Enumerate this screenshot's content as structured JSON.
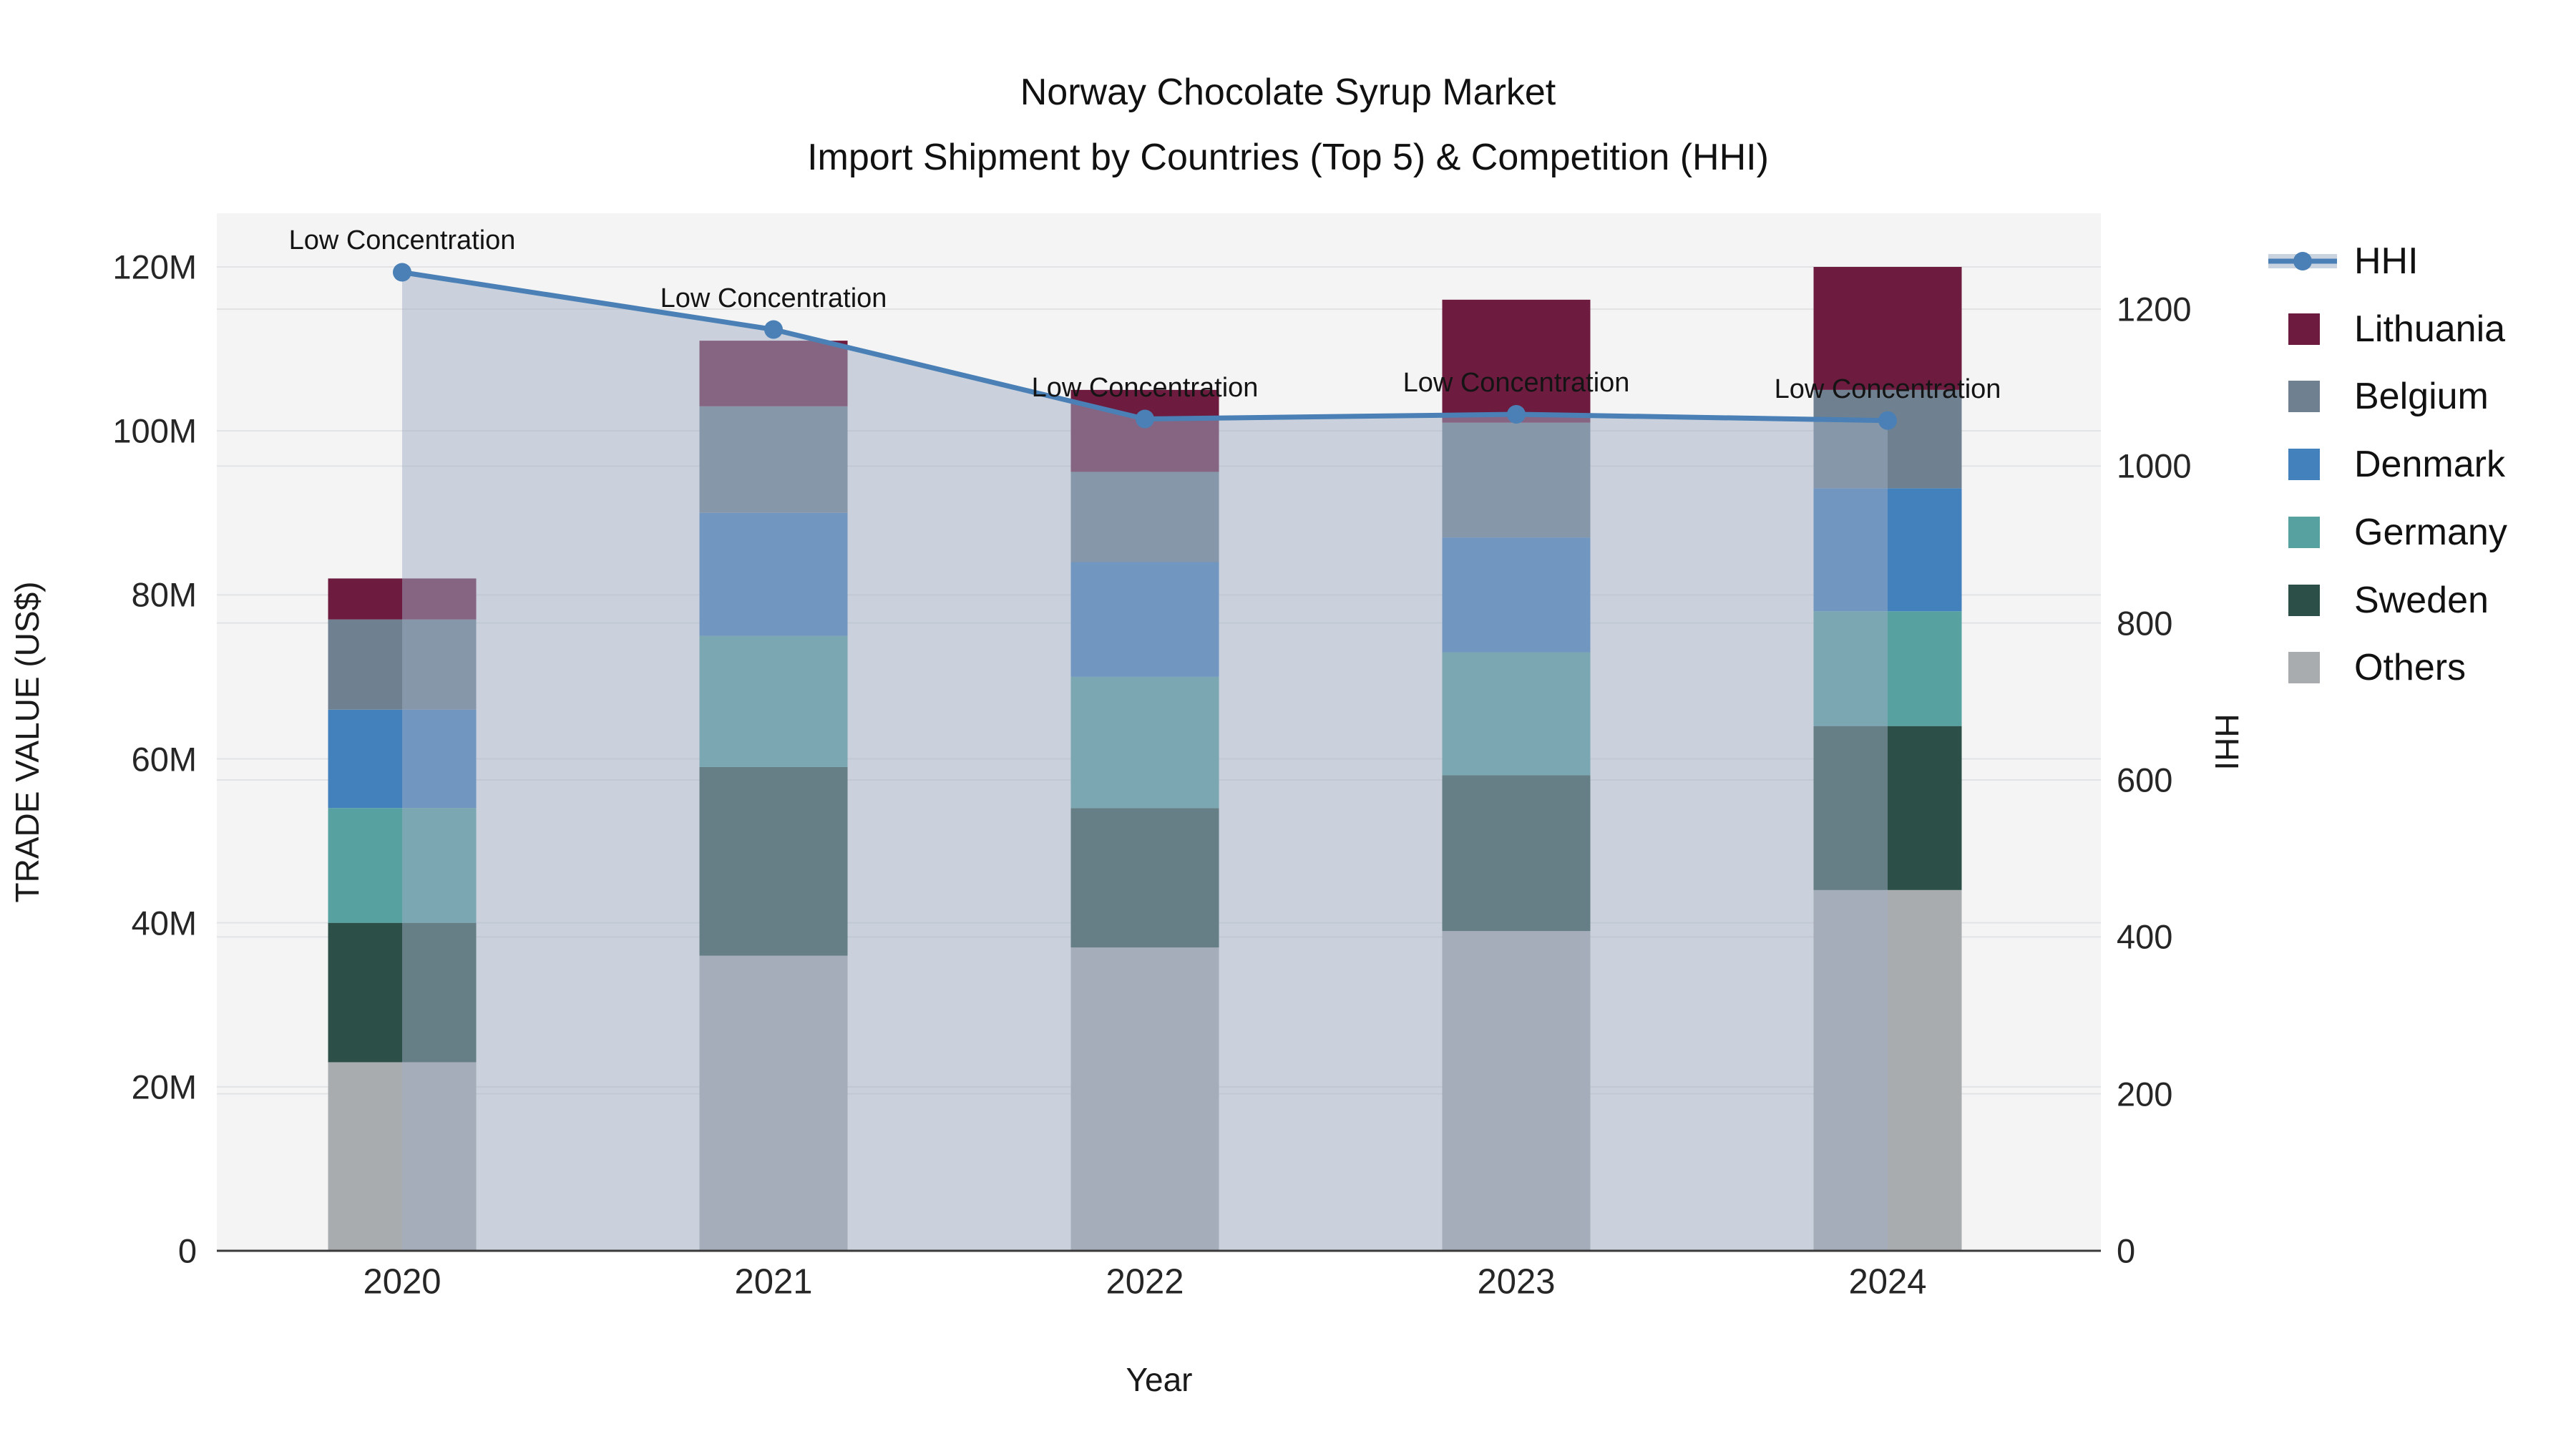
{
  "title": {
    "line1": "Norway Chocolate Syrup Market",
    "line2": "Import Shipment by Countries (Top 5) & Competition (HHI)"
  },
  "axes": {
    "x": {
      "label": "Year",
      "tick_labels": [
        "2020",
        "2021",
        "2022",
        "2023",
        "2024"
      ]
    },
    "y_left": {
      "label": "TRADE VALUE (US$)",
      "tick_labels": [
        "0",
        "20M",
        "40M",
        "60M",
        "80M",
        "100M",
        "120M"
      ],
      "tick_values": [
        0,
        20,
        40,
        60,
        80,
        100,
        120
      ]
    },
    "y_right": {
      "label": "HHI",
      "tick_labels": [
        "0",
        "200",
        "400",
        "600",
        "800",
        "1000",
        "1200"
      ],
      "tick_values": [
        0,
        200,
        400,
        600,
        800,
        1000,
        1200
      ]
    }
  },
  "legend": {
    "items": [
      {
        "label": "HHI",
        "type": "line",
        "color": "#4a80b5"
      },
      {
        "label": "Lithuania",
        "type": "swatch",
        "color": "#6d1c40"
      },
      {
        "label": "Belgium",
        "type": "swatch",
        "color": "#6f8191"
      },
      {
        "label": "Denmark",
        "type": "swatch",
        "color": "#4381bc"
      },
      {
        "label": "Germany",
        "type": "swatch",
        "color": "#57a1a1"
      },
      {
        "label": "Sweden",
        "type": "swatch",
        "color": "#2c5048"
      },
      {
        "label": "Others",
        "type": "swatch",
        "color": "#a9acae"
      }
    ]
  },
  "annotations": [
    "Low Concentration",
    "Low Concentration",
    "Low Concentration",
    "Low Concentration",
    "Low Concentration"
  ],
  "colors": {
    "hhi_line": "#4a80b5",
    "hhi_fill": "rgba(160,174,196,0.5)",
    "hhi_band": "#c9d2df",
    "plot_bg": "#f4f4f5",
    "gridline": "#e2e3e5",
    "axis_line": "#3a3a3a"
  },
  "chart_data": {
    "type": "bar-stacked+line",
    "title": "Norway Chocolate Syrup Market — Import Shipment by Countries (Top 5) & Competition (HHI)",
    "categories": [
      "2020",
      "2021",
      "2022",
      "2023",
      "2024"
    ],
    "stack_order_bottom_to_top": [
      "Others",
      "Sweden",
      "Germany",
      "Denmark",
      "Belgium",
      "Lithuania"
    ],
    "series": [
      {
        "name": "Others",
        "color": "#a9acae",
        "values": [
          23,
          36,
          37,
          39,
          44
        ]
      },
      {
        "name": "Sweden",
        "color": "#2c5048",
        "values": [
          17,
          23,
          17,
          19,
          20
        ]
      },
      {
        "name": "Germany",
        "color": "#57a1a1",
        "values": [
          14,
          16,
          16,
          15,
          14
        ]
      },
      {
        "name": "Denmark",
        "color": "#4381bc",
        "values": [
          12,
          15,
          14,
          14,
          15
        ]
      },
      {
        "name": "Belgium",
        "color": "#6f8191",
        "values": [
          11,
          13,
          11,
          14,
          12
        ]
      },
      {
        "name": "Lithuania",
        "color": "#6d1c40",
        "values": [
          5,
          8,
          10,
          15,
          15
        ]
      }
    ],
    "bar_totals_musd": [
      82,
      111,
      105,
      116,
      120
    ],
    "line_series": {
      "name": "HHI",
      "axis": "right",
      "color": "#4a80b5",
      "values": [
        1247,
        1174,
        1060,
        1066,
        1058
      ]
    },
    "xlabel": "Year",
    "ylabel": "TRADE VALUE (US$)",
    "y2label": "HHI",
    "ylim_musd": [
      0,
      126.6
    ],
    "y2lim": [
      0,
      1322
    ],
    "grid": true,
    "legend_position": "right"
  }
}
